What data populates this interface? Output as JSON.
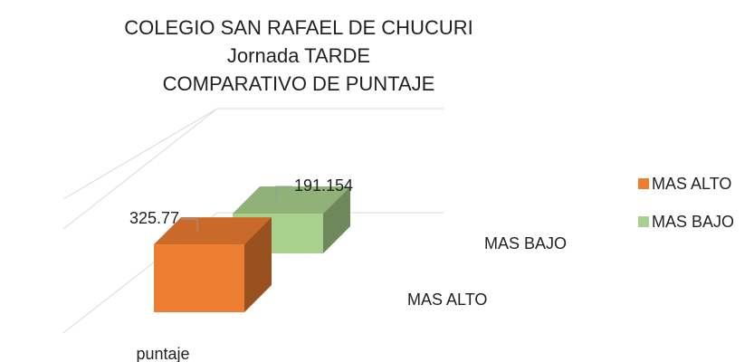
{
  "chart_data": {
    "type": "bar3d",
    "title": [
      "COLEGIO SAN RAFAEL DE CHUCURI",
      "Jornada TARDE",
      "COMPARATIVO DE PUNTAJE"
    ],
    "categories": [
      "puntaje"
    ],
    "series": [
      {
        "name": "MAS ALTO",
        "color": "#ED7D31",
        "values": [
          325.77
        ]
      },
      {
        "name": "MAS BAJO",
        "color": "#A9D18E",
        "values": [
          191.154
        ]
      }
    ],
    "ylim": [
      0,
      1000
    ],
    "yticks": [
      0,
      500
    ],
    "grid": true,
    "legend": "right"
  }
}
